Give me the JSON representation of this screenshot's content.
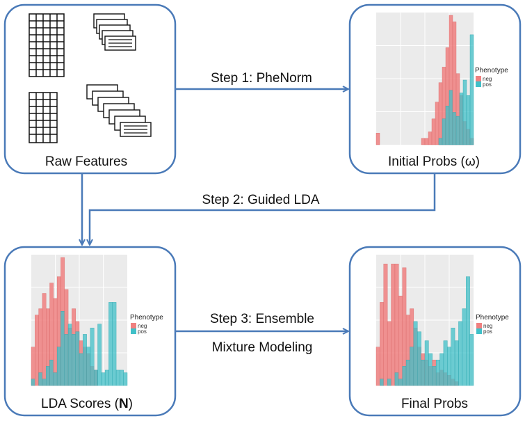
{
  "nodes": {
    "raw": {
      "label": "Raw Features"
    },
    "initial": {
      "label": "Initial Probs (ω)"
    },
    "lda": {
      "label_prefix": "LDA Scores (",
      "label_bold": "N",
      "label_suffix": ")"
    },
    "final": {
      "label": "Final Probs"
    }
  },
  "edges": {
    "step1": {
      "label": "Step 1: PheNorm"
    },
    "step2": {
      "label": "Step 2: Guided LDA"
    },
    "step3": {
      "label_line1": "Step 3: Ensemble",
      "label_line2": "Mixture Modeling"
    }
  },
  "legend": {
    "title": "Phenotype",
    "neg": "neg",
    "pos": "pos"
  },
  "colors": {
    "border": "#4a7ab8",
    "arrow": "#4a7ab8",
    "panel_bg": "#ebebeb",
    "grid": "#ffffff",
    "neg": "#f08080",
    "pos": "#40c0c8",
    "overlap": "#6fa0a0"
  },
  "chart_data": [
    {
      "id": "initial",
      "type": "histogram",
      "bins": 28,
      "series": [
        {
          "name": "neg",
          "values": [
            0.09,
            0.0,
            0.0,
            0.0,
            0.0,
            0.0,
            0.0,
            0.0,
            0.0,
            0.0,
            0.0,
            0.0,
            0.0,
            0.05,
            0.05,
            0.1,
            0.2,
            0.33,
            0.48,
            0.6,
            0.75,
            1.0,
            0.95,
            0.55,
            0.38,
            0.18,
            0.12,
            0.05
          ]
        },
        {
          "name": "pos",
          "values": [
            0.0,
            0.0,
            0.0,
            0.0,
            0.0,
            0.0,
            0.0,
            0.0,
            0.0,
            0.0,
            0.0,
            0.0,
            0.0,
            0.0,
            0.0,
            0.0,
            0.0,
            0.0,
            0.05,
            0.2,
            0.3,
            0.42,
            0.25,
            0.22,
            0.4,
            0.5,
            0.38,
            0.85
          ]
        }
      ]
    },
    {
      "id": "lda",
      "type": "histogram",
      "bins": 26,
      "series": [
        {
          "name": "neg",
          "values": [
            0.3,
            0.55,
            0.6,
            0.72,
            0.6,
            0.8,
            0.68,
            0.85,
            1.0,
            0.75,
            0.45,
            0.6,
            0.5,
            0.35,
            0.3,
            0.25,
            0.15,
            0.12,
            0.0,
            0.0,
            0.0,
            0.0,
            0.0,
            0.0,
            0.0,
            0.0
          ]
        },
        {
          "name": "pos",
          "values": [
            0.05,
            0.0,
            0.1,
            0.05,
            0.15,
            0.2,
            0.1,
            0.3,
            0.58,
            0.4,
            0.48,
            0.4,
            0.42,
            0.25,
            0.4,
            0.3,
            0.45,
            0.12,
            0.48,
            0.1,
            0.12,
            0.65,
            0.65,
            0.12,
            0.12,
            0.1
          ]
        }
      ]
    },
    {
      "id": "final",
      "type": "histogram",
      "bins": 26,
      "series": [
        {
          "name": "neg",
          "values": [
            0.3,
            0.65,
            0.95,
            0.5,
            0.95,
            0.95,
            0.7,
            0.92,
            0.55,
            0.6,
            0.45,
            0.3,
            0.25,
            0.2,
            0.15,
            0.2,
            0.1,
            0.12,
            0.1,
            0.08,
            0.05,
            0.03,
            0.0,
            0.0,
            0.0,
            0.0
          ]
        },
        {
          "name": "pos",
          "values": [
            0.0,
            0.05,
            0.0,
            0.05,
            0.0,
            0.1,
            0.05,
            0.15,
            0.2,
            0.3,
            0.5,
            0.42,
            0.2,
            0.35,
            0.25,
            0.15,
            0.2,
            0.25,
            0.35,
            0.3,
            0.45,
            0.35,
            0.5,
            0.6,
            0.85,
            0.4
          ]
        }
      ]
    }
  ]
}
